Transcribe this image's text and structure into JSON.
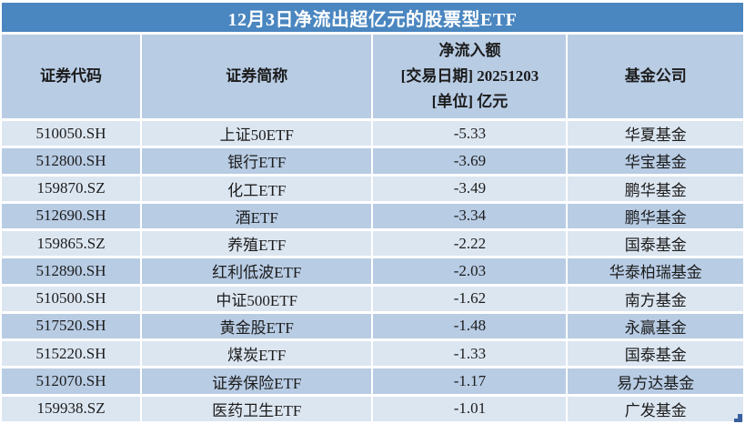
{
  "chart_data": {
    "type": "table",
    "title": "12月3日净流出超亿元的股票型ETF",
    "columns": {
      "code": "证券代码",
      "name": "证券简称",
      "netflow_line1": "净流入额",
      "netflow_line2": "[交易日期] 20251203",
      "netflow_line3": "[单位] 亿元",
      "company": "基金公司"
    },
    "rows": [
      {
        "code": "510050.SH",
        "name": "上证50ETF",
        "value": "-5.33",
        "company": "华夏基金"
      },
      {
        "code": "512800.SH",
        "name": "银行ETF",
        "value": "-3.69",
        "company": "华宝基金"
      },
      {
        "code": "159870.SZ",
        "name": "化工ETF",
        "value": "-3.49",
        "company": "鹏华基金"
      },
      {
        "code": "512690.SH",
        "name": "酒ETF",
        "value": "-3.34",
        "company": "鹏华基金"
      },
      {
        "code": "159865.SZ",
        "name": "养殖ETF",
        "value": "-2.22",
        "company": "国泰基金"
      },
      {
        "code": "512890.SH",
        "name": "红利低波ETF",
        "value": "-2.03",
        "company": "华泰柏瑞基金"
      },
      {
        "code": "510500.SH",
        "name": "中证500ETF",
        "value": "-1.62",
        "company": "南方基金"
      },
      {
        "code": "517520.SH",
        "name": "黄金股ETF",
        "value": "-1.48",
        "company": "永赢基金"
      },
      {
        "code": "515220.SH",
        "name": "煤炭ETF",
        "value": "-1.33",
        "company": "国泰基金"
      },
      {
        "code": "512070.SH",
        "name": "证券保险ETF",
        "value": "-1.17",
        "company": "易方达基金"
      },
      {
        "code": "159938.SZ",
        "name": "医药卫生ETF",
        "value": "-1.01",
        "company": "广发基金"
      }
    ]
  },
  "colors": {
    "title_bg": "#4a86c0",
    "title_text": "#ffffff",
    "header_bg": "#b8cce4",
    "row_light": "#dce6f1",
    "row_dark": "#b8cce4",
    "text": "#1c1c1c",
    "corner_mark": "#3a5f9e"
  }
}
